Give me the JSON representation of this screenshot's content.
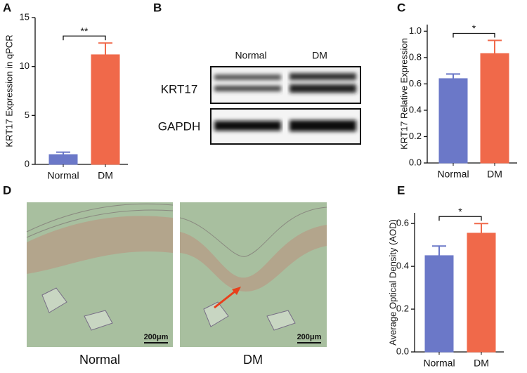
{
  "chart_data": [
    {
      "type": "bar",
      "panel": "A",
      "ylabel": "KRT17 Expression in qPCR",
      "categories": [
        "Normal",
        "DM"
      ],
      "values": [
        1.0,
        11.2
      ],
      "errors": [
        0.25,
        1.2
      ],
      "colors": [
        "#6b78c8",
        "#f0694a"
      ],
      "significance": "**",
      "ylim": [
        0,
        15
      ],
      "yticks": [
        0,
        5,
        10,
        15
      ]
    },
    {
      "type": "bar",
      "panel": "C",
      "ylabel": "KRT17 Relative Expression",
      "categories": [
        "Normal",
        "DM"
      ],
      "values": [
        0.64,
        0.83
      ],
      "errors": [
        0.035,
        0.1
      ],
      "colors": [
        "#6b78c8",
        "#f0694a"
      ],
      "significance": "*",
      "ylim": [
        0,
        1.05
      ],
      "yticks": [
        {
          "value": 0,
          "label": "0.0"
        },
        0.2,
        0.4,
        0.6,
        0.8,
        {
          "value": 1,
          "label": "1.0"
        }
      ]
    },
    {
      "type": "bar",
      "panel": "E",
      "ylabel": "Average Optical Density (AOD)",
      "categories": [
        "Normal",
        "DM"
      ],
      "values": [
        0.45,
        0.555
      ],
      "errors": [
        0.045,
        0.045
      ],
      "colors": [
        "#6b78c8",
        "#f0694a"
      ],
      "significance": "*",
      "ylim": [
        0,
        0.65
      ],
      "yticks": [
        {
          "value": 0,
          "label": "0.0"
        },
        0.2,
        0.4,
        0.6
      ]
    }
  ],
  "blot": {
    "panel": "B",
    "lanes": [
      "Normal",
      "DM"
    ],
    "bands": [
      "KRT17",
      "GAPDH"
    ]
  },
  "histology": {
    "panel": "D",
    "images": [
      {
        "label": "Normal",
        "scale_bar": "200μm"
      },
      {
        "label": "DM",
        "scale_bar": "200μm"
      }
    ]
  }
}
